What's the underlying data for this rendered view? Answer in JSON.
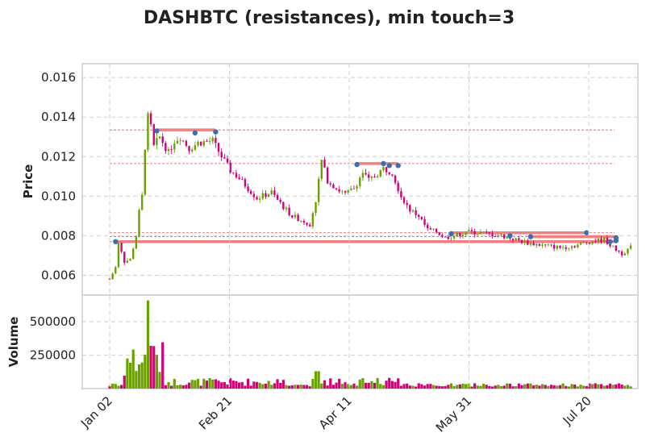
{
  "chart_data": {
    "type": "candlestick",
    "title": "DASHBTC (resistances), min touch=3",
    "price_panel": {
      "ylabel": "Price",
      "ylim": [
        0.005,
        0.0167
      ],
      "yticks": [
        "0.006",
        "0.008",
        "0.010",
        "0.012",
        "0.014",
        "0.016"
      ],
      "grid": true
    },
    "volume_panel": {
      "ylabel": "Volume",
      "ylim": [
        0,
        700000
      ],
      "yticks": [
        "250000",
        "500000"
      ],
      "grid": true
    },
    "xticks": [
      "Jan 02",
      "Feb 21",
      "Apr 11",
      "May 31",
      "Jul 20"
    ],
    "colors": {
      "up": "#6aa000",
      "down": "#d3007a",
      "resistance": "#f08080",
      "touch_point": "#3a6fb0"
    },
    "resistance_levels": [
      {
        "level": 0.0077,
        "from_day": 2,
        "to_day": 200,
        "touches": 4
      },
      {
        "level": 0.00795,
        "from_day": 143,
        "to_day": 205,
        "touches": 3
      },
      {
        "level": 0.00815,
        "from_day": 116,
        "to_day": 162,
        "touches": 3
      },
      {
        "level": 0.01335,
        "from_day": 16,
        "to_day": 36,
        "touches": 3
      },
      {
        "level": 0.01165,
        "from_day": 84,
        "to_day": 98,
        "touches": 4
      }
    ],
    "touch_days": [
      [
        2,
        0.0077
      ],
      [
        16,
        0.0133
      ],
      [
        29,
        0.0132
      ],
      [
        36,
        0.01325
      ],
      [
        84,
        0.0116
      ],
      [
        93,
        0.01165
      ],
      [
        95,
        0.01155
      ],
      [
        98,
        0.01155
      ],
      [
        116,
        0.0081
      ],
      [
        136,
        0.008
      ],
      [
        143,
        0.00795
      ],
      [
        162,
        0.00815
      ],
      [
        170,
        0.0077
      ],
      [
        197,
        0.00775
      ],
      [
        200,
        0.0079
      ]
    ],
    "price_key_points": [
      [
        0,
        0.0058
      ],
      [
        2,
        0.0064
      ],
      [
        3,
        0.0076
      ],
      [
        5,
        0.0067
      ],
      [
        7,
        0.0068
      ],
      [
        9,
        0.008
      ],
      [
        10,
        0.0092
      ],
      [
        11,
        0.01
      ],
      [
        12,
        0.0125
      ],
      [
        13,
        0.014
      ],
      [
        14,
        0.0135
      ],
      [
        15,
        0.0125
      ],
      [
        17,
        0.013
      ],
      [
        20,
        0.0122
      ],
      [
        22,
        0.0128
      ],
      [
        24,
        0.013
      ],
      [
        27,
        0.0124
      ],
      [
        30,
        0.0127
      ],
      [
        35,
        0.0128
      ],
      [
        38,
        0.012
      ],
      [
        41,
        0.0113
      ],
      [
        44,
        0.0109
      ],
      [
        47,
        0.0104
      ],
      [
        50,
        0.0099
      ],
      [
        55,
        0.0102
      ],
      [
        57,
        0.0098
      ],
      [
        60,
        0.0093
      ],
      [
        62,
        0.009
      ],
      [
        65,
        0.0088
      ],
      [
        68,
        0.0086
      ],
      [
        70,
        0.0098
      ],
      [
        72,
        0.0118
      ],
      [
        74,
        0.0108
      ],
      [
        77,
        0.0104
      ],
      [
        80,
        0.0101
      ],
      [
        83,
        0.0104
      ],
      [
        86,
        0.0112
      ],
      [
        88,
        0.0108
      ],
      [
        90,
        0.011
      ],
      [
        93,
        0.0114
      ],
      [
        96,
        0.0112
      ],
      [
        99,
        0.01
      ],
      [
        102,
        0.0093
      ],
      [
        105,
        0.009
      ],
      [
        108,
        0.0083
      ],
      [
        111,
        0.0082
      ],
      [
        114,
        0.0079
      ],
      [
        117,
        0.008
      ],
      [
        122,
        0.0082
      ],
      [
        128,
        0.0081
      ],
      [
        133,
        0.008
      ],
      [
        138,
        0.0078
      ],
      [
        143,
        0.0076
      ],
      [
        148,
        0.0075
      ],
      [
        153,
        0.0074
      ],
      [
        158,
        0.0075
      ],
      [
        163,
        0.0077
      ],
      [
        168,
        0.0078
      ],
      [
        171,
        0.0074
      ],
      [
        174,
        0.0071
      ],
      [
        177,
        0.0074
      ]
    ]
  }
}
